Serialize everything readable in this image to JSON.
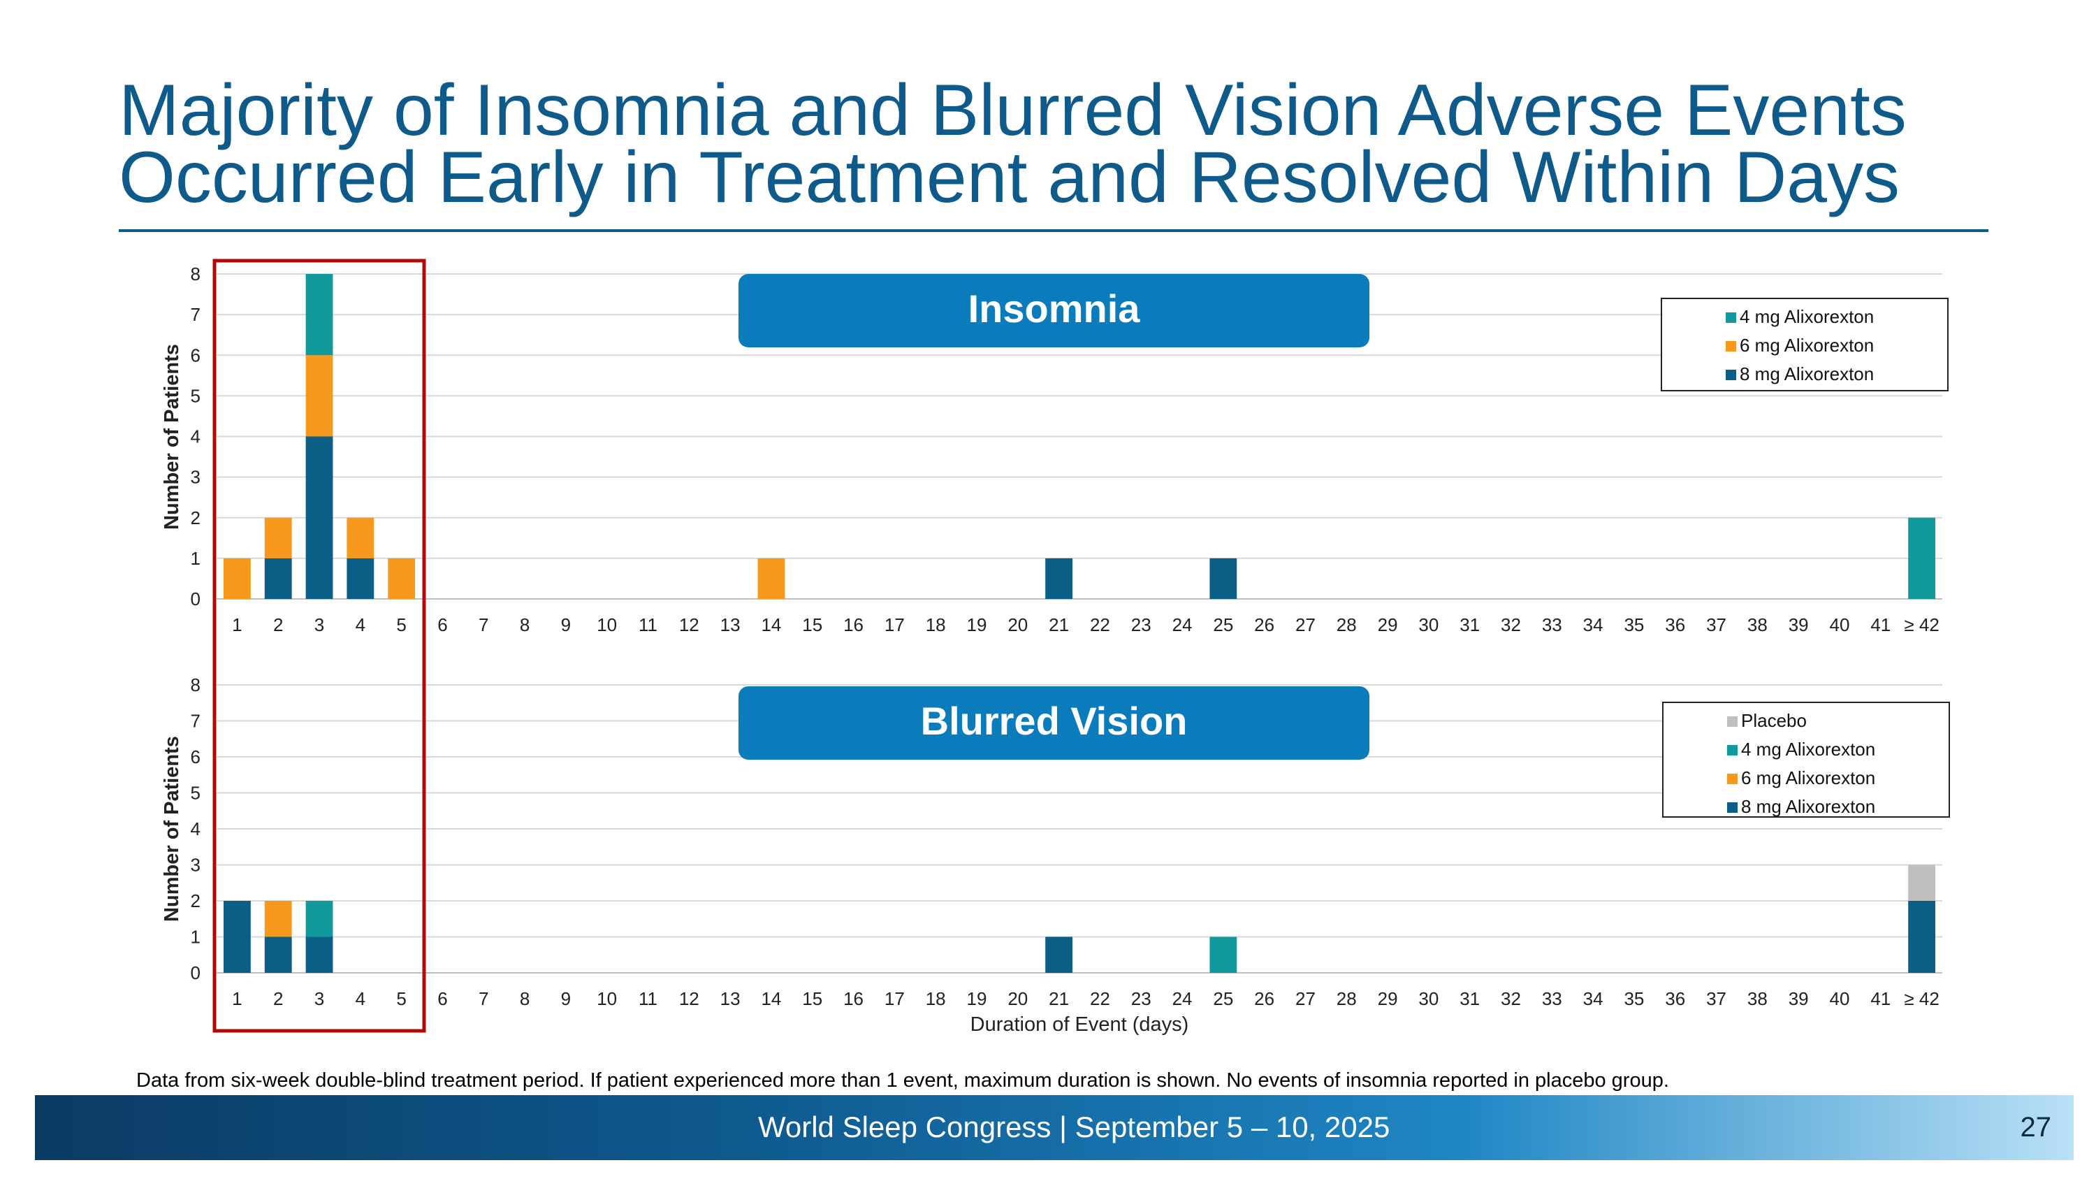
{
  "title": {
    "line1": "Majority of Insomnia and Blurred Vision Adverse Events",
    "line2": "Occurred Early in Treatment and Resolved Within Days"
  },
  "colors": {
    "title": "#0e5a8a",
    "dose_8mg": "#0b5e85",
    "dose_6mg": "#f7991c",
    "dose_4mg": "#11999c",
    "placebo": "#bfbfbf",
    "panel_label_bg": "#0a7bbb",
    "highlight_box": "#b00b0b"
  },
  "chart_data": [
    {
      "type": "bar",
      "stacked": true,
      "title": "Insomnia",
      "ylabel": "Number of Patients",
      "xlabel": "",
      "ylim": [
        0,
        8
      ],
      "yticks": [
        "0",
        "1",
        "2",
        "3",
        "4",
        "5",
        "6",
        "7",
        "8"
      ],
      "categories": [
        "1",
        "2",
        "3",
        "4",
        "5",
        "6",
        "7",
        "8",
        "9",
        "10",
        "11",
        "12",
        "13",
        "14",
        "15",
        "16",
        "17",
        "18",
        "19",
        "20",
        "21",
        "22",
        "23",
        "24",
        "25",
        "26",
        "27",
        "28",
        "29",
        "30",
        "31",
        "32",
        "33",
        "34",
        "35",
        "36",
        "37",
        "38",
        "39",
        "40",
        "41",
        "≥ 42"
      ],
      "legend": [
        "4 mg Alixorexton",
        "6 mg Alixorexton",
        "8 mg Alixorexton"
      ],
      "series": [
        {
          "name": "8 mg Alixorexton",
          "color_key": "dose_8mg",
          "values": [
            0,
            1,
            4,
            1,
            0,
            0,
            0,
            0,
            0,
            0,
            0,
            0,
            0,
            0,
            0,
            0,
            0,
            0,
            0,
            0,
            1,
            0,
            0,
            0,
            1,
            0,
            0,
            0,
            0,
            0,
            0,
            0,
            0,
            0,
            0,
            0,
            0,
            0,
            0,
            0,
            0,
            0
          ]
        },
        {
          "name": "6 mg Alixorexton",
          "color_key": "dose_6mg",
          "values": [
            1,
            1,
            2,
            1,
            1,
            0,
            0,
            0,
            0,
            0,
            0,
            0,
            0,
            1,
            0,
            0,
            0,
            0,
            0,
            0,
            0,
            0,
            0,
            0,
            0,
            0,
            0,
            0,
            0,
            0,
            0,
            0,
            0,
            0,
            0,
            0,
            0,
            0,
            0,
            0,
            0,
            0
          ]
        },
        {
          "name": "4 mg Alixorexton",
          "color_key": "dose_4mg",
          "values": [
            0,
            0,
            2,
            0,
            0,
            0,
            0,
            0,
            0,
            0,
            0,
            0,
            0,
            0,
            0,
            0,
            0,
            0,
            0,
            0,
            0,
            0,
            0,
            0,
            0,
            0,
            0,
            0,
            0,
            0,
            0,
            0,
            0,
            0,
            0,
            0,
            0,
            0,
            0,
            0,
            0,
            2
          ]
        }
      ]
    },
    {
      "type": "bar",
      "stacked": true,
      "title": "Blurred Vision",
      "ylabel": "Number of Patients",
      "xlabel": "Duration of Event (days)",
      "ylim": [
        0,
        8
      ],
      "yticks": [
        "0",
        "1",
        "2",
        "3",
        "4",
        "5",
        "6",
        "7",
        "8"
      ],
      "categories": [
        "1",
        "2",
        "3",
        "4",
        "5",
        "6",
        "7",
        "8",
        "9",
        "10",
        "11",
        "12",
        "13",
        "14",
        "15",
        "16",
        "17",
        "18",
        "19",
        "20",
        "21",
        "22",
        "23",
        "24",
        "25",
        "26",
        "27",
        "28",
        "29",
        "30",
        "31",
        "32",
        "33",
        "34",
        "35",
        "36",
        "37",
        "38",
        "39",
        "40",
        "41",
        "≥ 42"
      ],
      "legend": [
        "Placebo",
        "4 mg Alixorexton",
        "6 mg Alixorexton",
        "8 mg Alixorexton"
      ],
      "series": [
        {
          "name": "8 mg Alixorexton",
          "color_key": "dose_8mg",
          "values": [
            2,
            1,
            1,
            0,
            0,
            0,
            0,
            0,
            0,
            0,
            0,
            0,
            0,
            0,
            0,
            0,
            0,
            0,
            0,
            0,
            1,
            0,
            0,
            0,
            0,
            0,
            0,
            0,
            0,
            0,
            0,
            0,
            0,
            0,
            0,
            0,
            0,
            0,
            0,
            0,
            0,
            2
          ]
        },
        {
          "name": "6 mg Alixorexton",
          "color_key": "dose_6mg",
          "values": [
            0,
            1,
            0,
            0,
            0,
            0,
            0,
            0,
            0,
            0,
            0,
            0,
            0,
            0,
            0,
            0,
            0,
            0,
            0,
            0,
            0,
            0,
            0,
            0,
            0,
            0,
            0,
            0,
            0,
            0,
            0,
            0,
            0,
            0,
            0,
            0,
            0,
            0,
            0,
            0,
            0,
            0
          ]
        },
        {
          "name": "4 mg Alixorexton",
          "color_key": "dose_4mg",
          "values": [
            0,
            0,
            1,
            0,
            0,
            0,
            0,
            0,
            0,
            0,
            0,
            0,
            0,
            0,
            0,
            0,
            0,
            0,
            0,
            0,
            0,
            0,
            0,
            0,
            1,
            0,
            0,
            0,
            0,
            0,
            0,
            0,
            0,
            0,
            0,
            0,
            0,
            0,
            0,
            0,
            0,
            0
          ]
        },
        {
          "name": "Placebo",
          "color_key": "placebo",
          "values": [
            0,
            0,
            0,
            0,
            0,
            0,
            0,
            0,
            0,
            0,
            0,
            0,
            0,
            0,
            0,
            0,
            0,
            0,
            0,
            0,
            0,
            0,
            0,
            0,
            0,
            0,
            0,
            0,
            0,
            0,
            0,
            0,
            0,
            0,
            0,
            0,
            0,
            0,
            0,
            0,
            0,
            1
          ]
        }
      ]
    }
  ],
  "footnote": "Data from six-week double-blind treatment period. If patient experienced more than 1 event, maximum duration is shown. No events of insomnia reported in placebo group.",
  "footer": {
    "text": "World Sleep Congress | September 5 – 10, 2025",
    "page_number": "27"
  }
}
